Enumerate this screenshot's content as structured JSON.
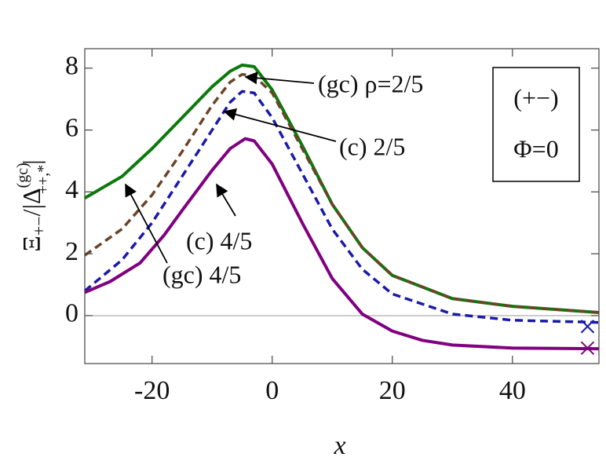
{
  "chart_data": {
    "type": "line",
    "xlabel": "x",
    "ylabel": {
      "main": "Ξ",
      "sub": "+−",
      "mid": "/|Δ",
      "sup": "(gc)",
      "sub2": "++,*",
      "end": "|"
    },
    "xlim": [
      -31.2,
      54.4
    ],
    "ylim": [
      -1.55,
      8.63
    ],
    "xticks": [
      -20,
      0,
      20,
      40
    ],
    "yticks": [
      0,
      2,
      4,
      6,
      8
    ],
    "series": [
      {
        "name": "(gc) 4/5",
        "color": "#0b7a0b",
        "style": "solid",
        "x": [
          -31.2,
          -25,
          -20,
          -15,
          -10,
          -7,
          -5,
          -3,
          0,
          5,
          10,
          15,
          20,
          30,
          40,
          54.4
        ],
        "values": [
          3.8,
          4.5,
          5.4,
          6.4,
          7.4,
          7.9,
          8.1,
          8.05,
          7.3,
          5.5,
          3.6,
          2.2,
          1.3,
          0.55,
          0.3,
          0.1
        ]
      },
      {
        "name": "(gc) ρ=2/5",
        "color": "#6b4428",
        "style": "dashed",
        "x": [
          -31.2,
          -25,
          -20,
          -15,
          -10,
          -7,
          -5,
          -3,
          0,
          5,
          10,
          15,
          20,
          30,
          40,
          54.4
        ],
        "values": [
          1.95,
          2.8,
          3.9,
          5.3,
          6.8,
          7.55,
          7.8,
          7.75,
          7.2,
          5.4,
          3.6,
          2.2,
          1.3,
          0.55,
          0.3,
          0.1
        ]
      },
      {
        "name": "(c) 2/5",
        "color": "#1a1aa8",
        "style": "dashed",
        "x": [
          -31.2,
          -25,
          -20,
          -15,
          -10,
          -7,
          -5,
          -3,
          0,
          5,
          10,
          15,
          20,
          30,
          40,
          54.4
        ],
        "values": [
          0.8,
          1.8,
          3.0,
          4.5,
          6.0,
          6.9,
          7.25,
          7.2,
          6.4,
          4.6,
          2.8,
          1.5,
          0.7,
          0.05,
          -0.15,
          -0.22
        ]
      },
      {
        "name": "(c) 4/5",
        "color": "#800080",
        "style": "solid",
        "x": [
          -31.2,
          -27,
          -22,
          -18,
          -15,
          -10,
          -7,
          -4.5,
          -3,
          0,
          5,
          10,
          15,
          20,
          25,
          30,
          40,
          54.4
        ],
        "values": [
          0.75,
          1.1,
          1.7,
          2.6,
          3.4,
          4.7,
          5.4,
          5.72,
          5.65,
          4.9,
          3.0,
          1.2,
          0.05,
          -0.5,
          -0.8,
          -0.95,
          -1.05,
          -1.07
        ]
      }
    ],
    "markers": [
      {
        "x": 52.5,
        "y": -0.35,
        "color": "#1a1aa8"
      },
      {
        "x": 52.5,
        "y": -1.05,
        "color": "#800080"
      }
    ],
    "box_text": [
      "(+−)",
      "Φ=0"
    ]
  }
}
